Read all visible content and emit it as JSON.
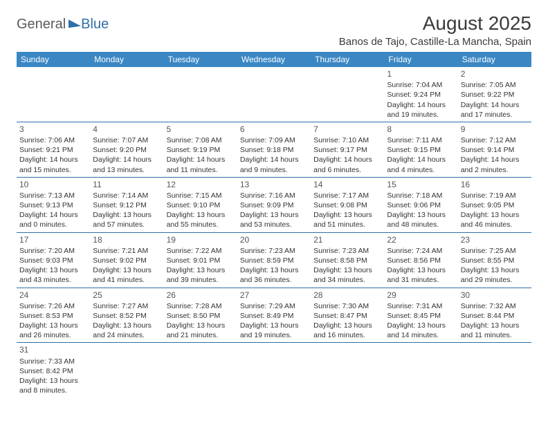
{
  "brand": {
    "part1": "General",
    "part2": "Blue"
  },
  "title": "August 2025",
  "location": "Banos de Tajo, Castille-La Mancha, Spain",
  "header_bg": "#3a87c4",
  "border_color": "#2f6fa8",
  "dayHeaders": [
    "Sunday",
    "Monday",
    "Tuesday",
    "Wednesday",
    "Thursday",
    "Friday",
    "Saturday"
  ],
  "weeks": [
    [
      null,
      null,
      null,
      null,
      null,
      {
        "n": "1",
        "sr": "Sunrise: 7:04 AM",
        "ss": "Sunset: 9:24 PM",
        "d1": "Daylight: 14 hours",
        "d2": "and 19 minutes."
      },
      {
        "n": "2",
        "sr": "Sunrise: 7:05 AM",
        "ss": "Sunset: 9:22 PM",
        "d1": "Daylight: 14 hours",
        "d2": "and 17 minutes."
      }
    ],
    [
      {
        "n": "3",
        "sr": "Sunrise: 7:06 AM",
        "ss": "Sunset: 9:21 PM",
        "d1": "Daylight: 14 hours",
        "d2": "and 15 minutes."
      },
      {
        "n": "4",
        "sr": "Sunrise: 7:07 AM",
        "ss": "Sunset: 9:20 PM",
        "d1": "Daylight: 14 hours",
        "d2": "and 13 minutes."
      },
      {
        "n": "5",
        "sr": "Sunrise: 7:08 AM",
        "ss": "Sunset: 9:19 PM",
        "d1": "Daylight: 14 hours",
        "d2": "and 11 minutes."
      },
      {
        "n": "6",
        "sr": "Sunrise: 7:09 AM",
        "ss": "Sunset: 9:18 PM",
        "d1": "Daylight: 14 hours",
        "d2": "and 9 minutes."
      },
      {
        "n": "7",
        "sr": "Sunrise: 7:10 AM",
        "ss": "Sunset: 9:17 PM",
        "d1": "Daylight: 14 hours",
        "d2": "and 6 minutes."
      },
      {
        "n": "8",
        "sr": "Sunrise: 7:11 AM",
        "ss": "Sunset: 9:15 PM",
        "d1": "Daylight: 14 hours",
        "d2": "and 4 minutes."
      },
      {
        "n": "9",
        "sr": "Sunrise: 7:12 AM",
        "ss": "Sunset: 9:14 PM",
        "d1": "Daylight: 14 hours",
        "d2": "and 2 minutes."
      }
    ],
    [
      {
        "n": "10",
        "sr": "Sunrise: 7:13 AM",
        "ss": "Sunset: 9:13 PM",
        "d1": "Daylight: 14 hours",
        "d2": "and 0 minutes."
      },
      {
        "n": "11",
        "sr": "Sunrise: 7:14 AM",
        "ss": "Sunset: 9:12 PM",
        "d1": "Daylight: 13 hours",
        "d2": "and 57 minutes."
      },
      {
        "n": "12",
        "sr": "Sunrise: 7:15 AM",
        "ss": "Sunset: 9:10 PM",
        "d1": "Daylight: 13 hours",
        "d2": "and 55 minutes."
      },
      {
        "n": "13",
        "sr": "Sunrise: 7:16 AM",
        "ss": "Sunset: 9:09 PM",
        "d1": "Daylight: 13 hours",
        "d2": "and 53 minutes."
      },
      {
        "n": "14",
        "sr": "Sunrise: 7:17 AM",
        "ss": "Sunset: 9:08 PM",
        "d1": "Daylight: 13 hours",
        "d2": "and 51 minutes."
      },
      {
        "n": "15",
        "sr": "Sunrise: 7:18 AM",
        "ss": "Sunset: 9:06 PM",
        "d1": "Daylight: 13 hours",
        "d2": "and 48 minutes."
      },
      {
        "n": "16",
        "sr": "Sunrise: 7:19 AM",
        "ss": "Sunset: 9:05 PM",
        "d1": "Daylight: 13 hours",
        "d2": "and 46 minutes."
      }
    ],
    [
      {
        "n": "17",
        "sr": "Sunrise: 7:20 AM",
        "ss": "Sunset: 9:03 PM",
        "d1": "Daylight: 13 hours",
        "d2": "and 43 minutes."
      },
      {
        "n": "18",
        "sr": "Sunrise: 7:21 AM",
        "ss": "Sunset: 9:02 PM",
        "d1": "Daylight: 13 hours",
        "d2": "and 41 minutes."
      },
      {
        "n": "19",
        "sr": "Sunrise: 7:22 AM",
        "ss": "Sunset: 9:01 PM",
        "d1": "Daylight: 13 hours",
        "d2": "and 39 minutes."
      },
      {
        "n": "20",
        "sr": "Sunrise: 7:23 AM",
        "ss": "Sunset: 8:59 PM",
        "d1": "Daylight: 13 hours",
        "d2": "and 36 minutes."
      },
      {
        "n": "21",
        "sr": "Sunrise: 7:23 AM",
        "ss": "Sunset: 8:58 PM",
        "d1": "Daylight: 13 hours",
        "d2": "and 34 minutes."
      },
      {
        "n": "22",
        "sr": "Sunrise: 7:24 AM",
        "ss": "Sunset: 8:56 PM",
        "d1": "Daylight: 13 hours",
        "d2": "and 31 minutes."
      },
      {
        "n": "23",
        "sr": "Sunrise: 7:25 AM",
        "ss": "Sunset: 8:55 PM",
        "d1": "Daylight: 13 hours",
        "d2": "and 29 minutes."
      }
    ],
    [
      {
        "n": "24",
        "sr": "Sunrise: 7:26 AM",
        "ss": "Sunset: 8:53 PM",
        "d1": "Daylight: 13 hours",
        "d2": "and 26 minutes."
      },
      {
        "n": "25",
        "sr": "Sunrise: 7:27 AM",
        "ss": "Sunset: 8:52 PM",
        "d1": "Daylight: 13 hours",
        "d2": "and 24 minutes."
      },
      {
        "n": "26",
        "sr": "Sunrise: 7:28 AM",
        "ss": "Sunset: 8:50 PM",
        "d1": "Daylight: 13 hours",
        "d2": "and 21 minutes."
      },
      {
        "n": "27",
        "sr": "Sunrise: 7:29 AM",
        "ss": "Sunset: 8:49 PM",
        "d1": "Daylight: 13 hours",
        "d2": "and 19 minutes."
      },
      {
        "n": "28",
        "sr": "Sunrise: 7:30 AM",
        "ss": "Sunset: 8:47 PM",
        "d1": "Daylight: 13 hours",
        "d2": "and 16 minutes."
      },
      {
        "n": "29",
        "sr": "Sunrise: 7:31 AM",
        "ss": "Sunset: 8:45 PM",
        "d1": "Daylight: 13 hours",
        "d2": "and 14 minutes."
      },
      {
        "n": "30",
        "sr": "Sunrise: 7:32 AM",
        "ss": "Sunset: 8:44 PM",
        "d1": "Daylight: 13 hours",
        "d2": "and 11 minutes."
      }
    ],
    [
      {
        "n": "31",
        "sr": "Sunrise: 7:33 AM",
        "ss": "Sunset: 8:42 PM",
        "d1": "Daylight: 13 hours",
        "d2": "and 8 minutes."
      },
      null,
      null,
      null,
      null,
      null,
      null
    ]
  ]
}
